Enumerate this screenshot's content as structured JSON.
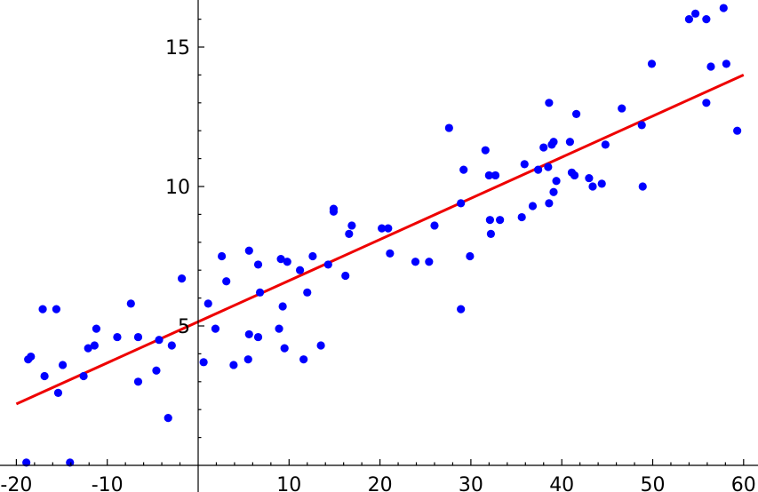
{
  "chart_data": {
    "type": "scatter",
    "title": "",
    "xlabel": "",
    "ylabel": "",
    "xlim": [
      -20.5,
      60.5
    ],
    "ylim": [
      0.1,
      16.8
    ],
    "grid": false,
    "legend": "none",
    "x_ticks": [
      {
        "value": -20,
        "label": "-20"
      },
      {
        "value": -10,
        "label": "-10"
      },
      {
        "value": 10,
        "label": "10"
      },
      {
        "value": 20,
        "label": "20"
      },
      {
        "value": 30,
        "label": "30"
      },
      {
        "value": 40,
        "label": "40"
      },
      {
        "value": 50,
        "label": "50"
      },
      {
        "value": 60,
        "label": "60"
      }
    ],
    "y_ticks": [
      {
        "value": 5,
        "label": "5"
      },
      {
        "value": 10,
        "label": "10"
      },
      {
        "value": 15,
        "label": "15"
      }
    ],
    "series": [
      {
        "kind": "points",
        "color": "#0000ff",
        "points": [
          [
            -18.7,
            3.8
          ],
          [
            -18.4,
            3.9
          ],
          [
            -17.1,
            5.6
          ],
          [
            -16.9,
            3.2
          ],
          [
            -15.6,
            5.6
          ],
          [
            -15.4,
            2.6
          ],
          [
            -14.9,
            3.6
          ],
          [
            -12.6,
            3.2
          ],
          [
            -12.1,
            4.2
          ],
          [
            -11.4,
            4.3
          ],
          [
            -11.2,
            4.9
          ],
          [
            -8.9,
            4.6
          ],
          [
            -7.4,
            5.8
          ],
          [
            -6.6,
            4.6
          ],
          [
            -6.6,
            3.0
          ],
          [
            -4.6,
            3.4
          ],
          [
            -4.3,
            4.5
          ],
          [
            -3.3,
            1.7
          ],
          [
            -2.9,
            4.3
          ],
          [
            -1.8,
            6.7
          ],
          [
            0.6,
            3.7
          ],
          [
            1.1,
            5.8
          ],
          [
            1.9,
            4.9
          ],
          [
            2.6,
            7.5
          ],
          [
            3.1,
            6.6
          ],
          [
            3.9,
            3.6
          ],
          [
            5.5,
            3.8
          ],
          [
            5.6,
            4.7
          ],
          [
            5.6,
            7.7
          ],
          [
            6.6,
            7.2
          ],
          [
            6.6,
            4.6
          ],
          [
            6.8,
            6.2
          ],
          [
            8.9,
            4.9
          ],
          [
            9.1,
            7.4
          ],
          [
            9.3,
            5.7
          ],
          [
            9.5,
            4.2
          ],
          [
            9.8,
            7.3
          ],
          [
            11.2,
            7.0
          ],
          [
            11.6,
            3.8
          ],
          [
            12.0,
            6.2
          ],
          [
            12.6,
            7.5
          ],
          [
            13.5,
            4.3
          ],
          [
            14.3,
            7.2
          ],
          [
            14.9,
            9.2
          ],
          [
            14.9,
            9.1
          ],
          [
            16.2,
            6.8
          ],
          [
            16.6,
            8.3
          ],
          [
            16.9,
            8.6
          ],
          [
            20.2,
            8.5
          ],
          [
            20.9,
            8.5
          ],
          [
            21.1,
            7.6
          ],
          [
            23.9,
            7.3
          ],
          [
            25.4,
            7.3
          ],
          [
            26.0,
            8.6
          ],
          [
            27.6,
            12.1
          ],
          [
            28.9,
            9.4
          ],
          [
            28.9,
            5.6
          ],
          [
            29.2,
            10.6
          ],
          [
            29.9,
            7.5
          ],
          [
            31.6,
            11.3
          ],
          [
            32.0,
            10.4
          ],
          [
            32.1,
            8.8
          ],
          [
            32.2,
            8.3
          ],
          [
            32.7,
            10.4
          ],
          [
            33.2,
            8.8
          ],
          [
            35.6,
            8.9
          ],
          [
            35.9,
            10.8
          ],
          [
            36.8,
            9.3
          ],
          [
            37.4,
            10.6
          ],
          [
            38.0,
            11.4
          ],
          [
            38.5,
            10.7
          ],
          [
            38.6,
            13.0
          ],
          [
            38.6,
            9.4
          ],
          [
            38.9,
            11.5
          ],
          [
            39.1,
            11.6
          ],
          [
            39.1,
            9.8
          ],
          [
            39.4,
            10.2
          ],
          [
            40.9,
            11.6
          ],
          [
            41.1,
            10.5
          ],
          [
            41.4,
            10.4
          ],
          [
            41.6,
            12.6
          ],
          [
            43.0,
            10.3
          ],
          [
            43.4,
            10.0
          ],
          [
            44.4,
            10.1
          ],
          [
            44.8,
            11.5
          ],
          [
            46.6,
            12.8
          ],
          [
            48.8,
            12.2
          ],
          [
            48.9,
            10.0
          ],
          [
            49.9,
            14.4
          ],
          [
            54.0,
            16.0
          ],
          [
            54.7,
            16.2
          ],
          [
            55.9,
            16.0
          ],
          [
            55.9,
            13.0
          ],
          [
            56.4,
            14.3
          ],
          [
            57.8,
            16.4
          ],
          [
            58.1,
            14.4
          ],
          [
            59.3,
            12.0
          ],
          [
            -18.9,
            0.1
          ],
          [
            -14.1,
            0.1
          ]
        ]
      },
      {
        "kind": "line",
        "color": "#ee0000",
        "points": [
          [
            -20,
            2.2
          ],
          [
            60,
            14.0
          ]
        ]
      }
    ]
  }
}
